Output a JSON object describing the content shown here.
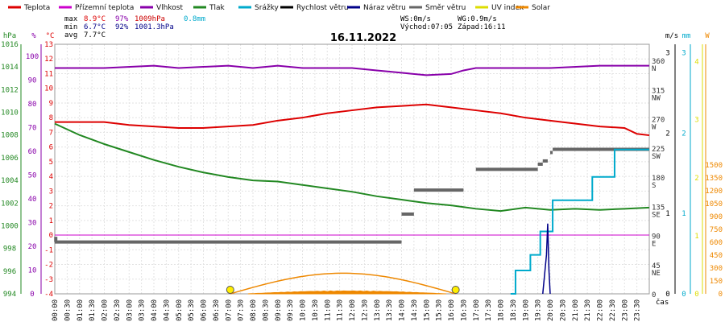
{
  "chart_data": {
    "type": "line",
    "title": "16.11.2022",
    "legend": [
      {
        "name": "Teplota",
        "color": "#dd0000"
      },
      {
        "name": "Přízemní teplota",
        "color": "#cc00cc"
      },
      {
        "name": "Vlhkost",
        "color": "#8800aa"
      },
      {
        "name": "Tlak",
        "color": "#228822"
      },
      {
        "name": "Srážky",
        "color": "#00aacc"
      },
      {
        "name": "Rychlost větru",
        "color": "#000000"
      },
      {
        "name": "Náraz větru",
        "color": "#000088"
      },
      {
        "name": "Směr větru",
        "color": "#666666"
      },
      {
        "name": "UV index",
        "color": "#dddd00"
      },
      {
        "name": "Solar",
        "color": "#ee8800"
      }
    ],
    "stats": {
      "max_label": "max",
      "max_temp": "8.9°C",
      "max_hum": "97%",
      "max_press": "1009hPa",
      "max_rain": "0.8mm",
      "min_label": "min",
      "min_temp": "6.7°C",
      "min_hum": "92%",
      "min_press": "1001.3hPa",
      "avg_label": "avg",
      "avg_temp": "7.7°C",
      "ws": "WS:0m/s",
      "wg": "WG:0.9m/s",
      "sunrise": "Východ:07:05",
      "sunset": "Západ:16:11"
    },
    "axes": {
      "hpa": {
        "unit": "hPa",
        "ticks": [
          "1016",
          "1014",
          "1012",
          "1010",
          "1008",
          "1006",
          "1004",
          "1002",
          "1000",
          "998",
          "996",
          "994"
        ]
      },
      "pct": {
        "unit": "%",
        "ticks": [
          "100",
          "90",
          "80",
          "70",
          "60",
          "50",
          "40",
          "30",
          "20",
          "10",
          "0"
        ]
      },
      "temp": {
        "unit": "°C",
        "ticks": [
          "13",
          "12",
          "11",
          "10",
          "9",
          "8",
          "7",
          "6",
          "5",
          "4",
          "3",
          "2",
          "1",
          "0",
          "-1",
          "-2",
          "-3",
          "-4"
        ]
      },
      "dir": {
        "ticks": [
          "360",
          "N",
          "315",
          "NW",
          "270",
          "W",
          "225",
          "SW",
          "180",
          "S",
          "135",
          "SE",
          "90",
          "E",
          "45",
          "NE",
          "0"
        ]
      },
      "ms": {
        "unit": "m/s",
        "ticks": [
          "3",
          "2",
          "1",
          "0"
        ]
      },
      "mm": {
        "unit": "mm",
        "ticks": [
          "3",
          "2",
          "1",
          "0"
        ]
      },
      "w": {
        "unit": "W",
        "ticks": [
          "1500",
          "1350",
          "1200",
          "1050",
          "900",
          "750",
          "600",
          "450",
          "300",
          "150",
          "0"
        ]
      },
      "uv": {
        "ticks": [
          "4",
          "3",
          "2",
          "1",
          "0"
        ]
      },
      "x_ticks": [
        "00:00",
        "00:30",
        "01:00",
        "01:30",
        "02:00",
        "02:30",
        "03:00",
        "03:30",
        "04:00",
        "04:30",
        "05:00",
        "05:30",
        "06:00",
        "06:30",
        "07:00",
        "07:30",
        "08:00",
        "08:30",
        "09:00",
        "09:30",
        "10:00",
        "10:30",
        "11:00",
        "11:30",
        "12:00",
        "12:30",
        "13:00",
        "13:30",
        "14:00",
        "14:30",
        "15:00",
        "15:30",
        "16:00",
        "16:30",
        "17:00",
        "17:30",
        "18:00",
        "18:30",
        "19:00",
        "19:30",
        "20:00",
        "20:30",
        "21:00",
        "21:30",
        "22:00",
        "22:30",
        "23:00",
        "23:30"
      ],
      "x_unit": "čas"
    },
    "series": {
      "temperature": [
        [
          0,
          7.7
        ],
        [
          2,
          7.7
        ],
        [
          3,
          7.5
        ],
        [
          4,
          7.4
        ],
        [
          5,
          7.3
        ],
        [
          6,
          7.3
        ],
        [
          7,
          7.4
        ],
        [
          8,
          7.5
        ],
        [
          9,
          7.8
        ],
        [
          10,
          8.0
        ],
        [
          11,
          8.3
        ],
        [
          12,
          8.5
        ],
        [
          13,
          8.7
        ],
        [
          14,
          8.8
        ],
        [
          15,
          8.9
        ],
        [
          16,
          8.7
        ],
        [
          17,
          8.5
        ],
        [
          18,
          8.3
        ],
        [
          19,
          8.0
        ],
        [
          20,
          7.8
        ],
        [
          21,
          7.6
        ],
        [
          22,
          7.4
        ],
        [
          23,
          7.3
        ],
        [
          23.5,
          6.9
        ],
        [
          24,
          6.8
        ]
      ],
      "humidity": [
        [
          0,
          95
        ],
        [
          2,
          95
        ],
        [
          4,
          96
        ],
        [
          5,
          95
        ],
        [
          7,
          96
        ],
        [
          8,
          95
        ],
        [
          9,
          96
        ],
        [
          10,
          95
        ],
        [
          12,
          95
        ],
        [
          13,
          94
        ],
        [
          14,
          93
        ],
        [
          15,
          92
        ],
        [
          16,
          92.5
        ],
        [
          16.5,
          94
        ],
        [
          17,
          95
        ],
        [
          19,
          95
        ],
        [
          20,
          95
        ],
        [
          22,
          96
        ],
        [
          24,
          96
        ]
      ],
      "pressure": [
        [
          0,
          1009.0
        ],
        [
          1,
          1008.0
        ],
        [
          2,
          1007.2
        ],
        [
          3,
          1006.5
        ],
        [
          4,
          1005.8
        ],
        [
          5,
          1005.2
        ],
        [
          6,
          1004.7
        ],
        [
          7,
          1004.3
        ],
        [
          8,
          1004.0
        ],
        [
          9,
          1003.9
        ],
        [
          10,
          1003.6
        ],
        [
          11,
          1003.3
        ],
        [
          12,
          1003.0
        ],
        [
          13,
          1002.6
        ],
        [
          14,
          1002.3
        ],
        [
          15,
          1002.0
        ],
        [
          16,
          1001.8
        ],
        [
          17,
          1001.5
        ],
        [
          18,
          1001.3
        ],
        [
          19,
          1001.6
        ],
        [
          20,
          1001.4
        ],
        [
          21,
          1001.5
        ],
        [
          22,
          1001.4
        ],
        [
          23,
          1001.5
        ],
        [
          24,
          1001.6
        ]
      ],
      "ground_temp": [
        [
          0,
          0.0
        ],
        [
          24,
          0.0
        ]
      ],
      "wind_dir_segments": [
        [
          0,
          14,
          80
        ],
        [
          14,
          14.5,
          123
        ],
        [
          14.5,
          16.5,
          160
        ],
        [
          17,
          19.5,
          192
        ],
        [
          19.5,
          19.7,
          200
        ],
        [
          19.7,
          19.9,
          205
        ],
        [
          20,
          20.1,
          218
        ],
        [
          20.1,
          24,
          223
        ]
      ],
      "rain": [
        [
          18.4,
          0
        ],
        [
          18.6,
          0.3
        ],
        [
          19.2,
          0.5
        ],
        [
          19.6,
          0.8
        ],
        [
          20.1,
          1.2
        ],
        [
          21.7,
          1.5
        ],
        [
          22.4,
          1.5
        ],
        [
          22.6,
          1.85
        ],
        [
          24,
          1.85
        ]
      ],
      "gust": [
        [
          19.7,
          0
        ],
        [
          19.85,
          0.5
        ],
        [
          19.9,
          0.9
        ],
        [
          19.95,
          0.3
        ],
        [
          20.0,
          0
        ]
      ],
      "solar_theoretical_peak": 240,
      "solar_measured_peak": 35,
      "sunrise_hour": 7.083,
      "sunset_hour": 16.183
    }
  }
}
